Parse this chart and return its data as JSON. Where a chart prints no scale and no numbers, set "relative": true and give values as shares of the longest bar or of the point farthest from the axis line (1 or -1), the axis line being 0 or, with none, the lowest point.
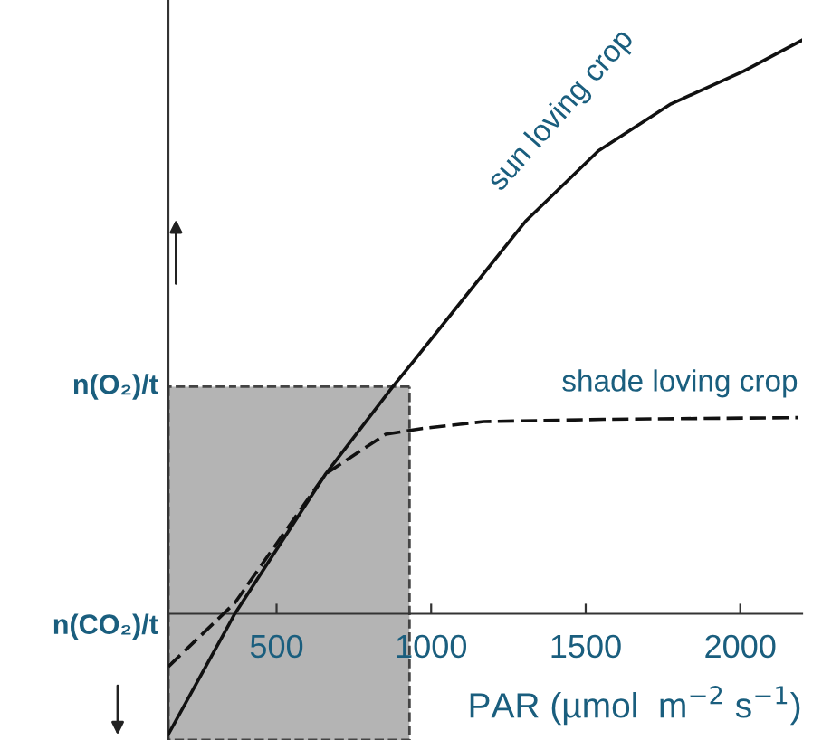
{
  "chart_data": {
    "type": "line",
    "relative": true,
    "xlabel": "PAR (µmol  m$^{−2}$ s$^{−1}$)",
    "xlim": [
      150,
      2200
    ],
    "xticks": [
      500,
      1000,
      1500,
      2000
    ],
    "series": [
      {
        "name": "sun loving crop",
        "color": "#111111",
        "line_style": "solid",
        "x": [
          150,
          365,
          659,
          876,
          947,
          1305,
          1541,
          1776,
          2011,
          2200
        ],
        "values": [
          -0.21,
          0,
          0.244,
          0.396,
          0.443,
          0.684,
          0.807,
          0.889,
          0.946,
          1.0
        ]
      },
      {
        "name": "shade loving crop",
        "color": "#111111",
        "line_style": "dashed",
        "x": [
          150,
          365,
          659,
          853,
          970,
          1170,
          1558,
          2187
        ],
        "values": [
          -0.092,
          0.019,
          0.244,
          0.313,
          0.323,
          0.335,
          0.339,
          0.342
        ]
      }
    ],
    "bands": [
      {
        "axis": "x",
        "from": 150,
        "to": 930,
        "color": "#b4b4b4"
      }
    ],
    "annotations": [
      {
        "text": "n(O₂)/t",
        "x": 150,
        "y": 0.396
      },
      {
        "text": "n(CO₂)/t",
        "x": 150,
        "y": 0
      }
    ],
    "grid": false
  }
}
